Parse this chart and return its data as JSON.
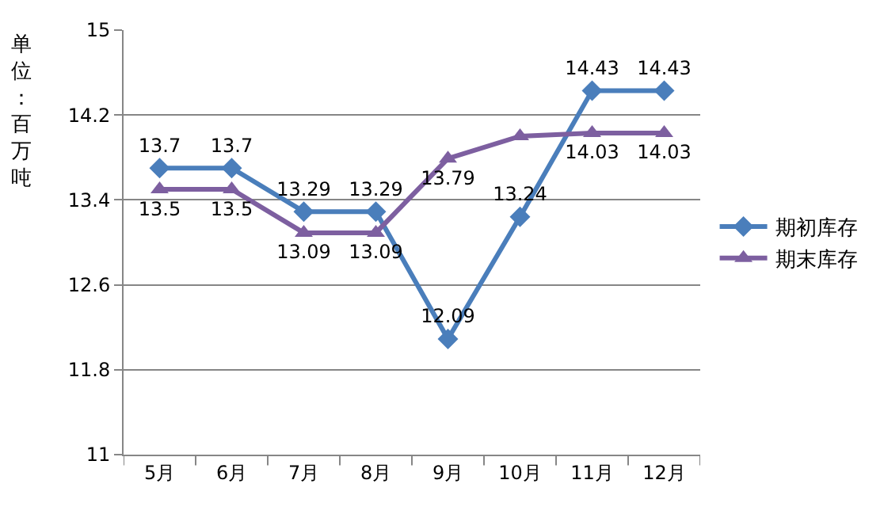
{
  "chart_data": {
    "type": "line",
    "ylabel": "单位：百万吨",
    "categories": [
      "5月",
      "6月",
      "7月",
      "8月",
      "9月",
      "10月",
      "11月",
      "12月"
    ],
    "series": [
      {
        "name": "期初库存",
        "color": "#4a7ebb",
        "marker": "diamond",
        "values": [
          13.7,
          13.7,
          13.29,
          13.29,
          12.09,
          13.24,
          14.43,
          14.43
        ],
        "value_labels": [
          "13.7",
          "13.7",
          "13.29",
          "13.29",
          "12.09",
          "13.24",
          "14.43",
          "14.43"
        ]
      },
      {
        "name": "期末库存",
        "color": "#7d5fa0",
        "marker": "triangle",
        "values": [
          13.5,
          13.5,
          13.09,
          13.09,
          13.79,
          14.0,
          14.03,
          14.03
        ],
        "value_labels": [
          "13.5",
          "13.5",
          "13.09",
          "13.09",
          "13.79",
          null,
          "14.03",
          "14.03"
        ]
      }
    ],
    "ylim": [
      11,
      15
    ],
    "yticks": [
      11,
      11.8,
      12.6,
      13.4,
      14.2,
      15
    ],
    "grid": "y",
    "legend": "right",
    "line_style": "solid"
  }
}
